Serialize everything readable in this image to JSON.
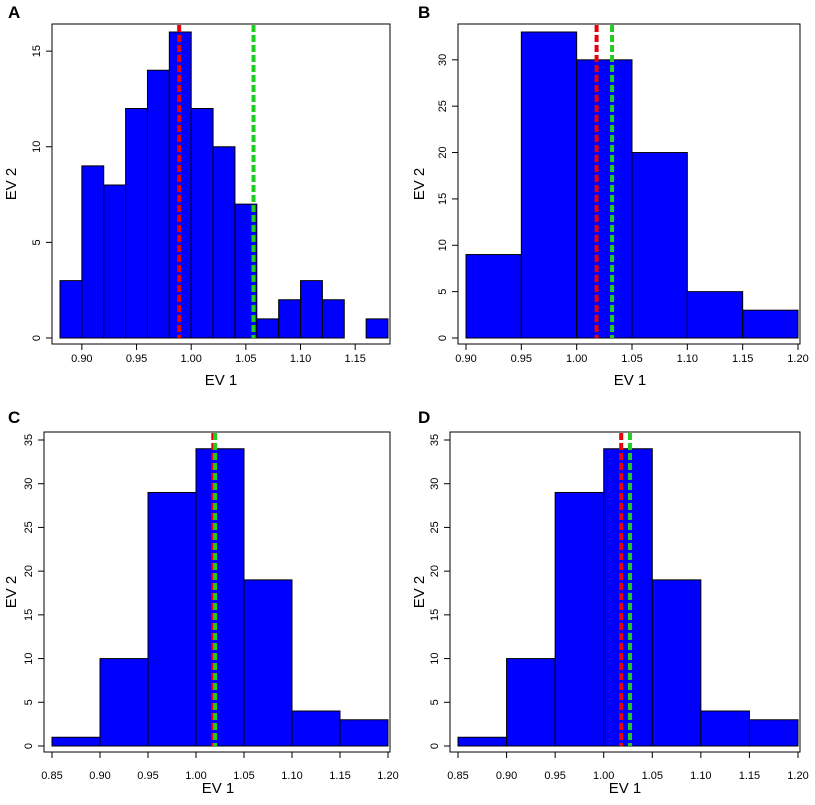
{
  "figure": {
    "colors": {
      "bar_fill": "#0000ff",
      "bar_stroke": "#000000",
      "red_line": "#e8000b",
      "green_line": "#22cc22",
      "axis": "#000000"
    }
  },
  "chart_data": [
    {
      "panel_label": "A",
      "type": "bar",
      "xlabel": "EV 1",
      "ylabel": "EV 2",
      "xlim": [
        0.88,
        1.18
      ],
      "ylim": [
        0,
        16
      ],
      "xticks": [
        "0.90",
        "0.95",
        "1.00",
        "1.05",
        "1.10",
        "1.15"
      ],
      "yticks": [
        "0",
        "5",
        "10",
        "15"
      ],
      "bins": [
        [
          0.88,
          0.9,
          3
        ],
        [
          0.9,
          0.92,
          9
        ],
        [
          0.92,
          0.94,
          8
        ],
        [
          0.94,
          0.96,
          12
        ],
        [
          0.96,
          0.98,
          14
        ],
        [
          0.98,
          1.0,
          16
        ],
        [
          1.0,
          1.02,
          12
        ],
        [
          1.02,
          1.04,
          10
        ],
        [
          1.04,
          1.06,
          7
        ],
        [
          1.06,
          1.08,
          1
        ],
        [
          1.08,
          1.1,
          2
        ],
        [
          1.1,
          1.12,
          3
        ],
        [
          1.12,
          1.14,
          2
        ],
        [
          1.14,
          1.16,
          0
        ],
        [
          1.16,
          1.18,
          1
        ]
      ],
      "red_line_x": 0.989,
      "green_line_x": 1.057
    },
    {
      "panel_label": "B",
      "type": "bar",
      "xlabel": "EV 1",
      "ylabel": "EV 2",
      "xlim": [
        0.9,
        1.2
      ],
      "ylim": [
        0,
        33
      ],
      "xticks": [
        "0.90",
        "0.95",
        "1.00",
        "1.05",
        "1.10",
        "1.15",
        "1.20"
      ],
      "yticks": [
        "0",
        "5",
        "10",
        "15",
        "20",
        "25",
        "30"
      ],
      "bins": [
        [
          0.9,
          0.95,
          9
        ],
        [
          0.95,
          1.0,
          33
        ],
        [
          1.0,
          1.05,
          30
        ],
        [
          1.05,
          1.1,
          20
        ],
        [
          1.1,
          1.15,
          5
        ],
        [
          1.15,
          1.2,
          3
        ]
      ],
      "red_line_x": 1.018,
      "green_line_x": 1.032
    },
    {
      "panel_label": "C",
      "type": "bar",
      "xlabel": "EV 1",
      "ylabel": "EV 2",
      "xlim": [
        0.85,
        1.2
      ],
      "ylim": [
        0,
        35
      ],
      "xticks": [
        "0.85",
        "0.90",
        "0.95",
        "1.00",
        "1.05",
        "1.10",
        "1.15",
        "1.20"
      ],
      "yticks": [
        "0",
        "5",
        "10",
        "15",
        "20",
        "25",
        "30",
        "35"
      ],
      "bins": [
        [
          0.85,
          0.9,
          1
        ],
        [
          0.9,
          0.95,
          10
        ],
        [
          0.95,
          1.0,
          29
        ],
        [
          1.0,
          1.05,
          34
        ],
        [
          1.05,
          1.1,
          19
        ],
        [
          1.1,
          1.15,
          4
        ],
        [
          1.15,
          1.2,
          3
        ]
      ],
      "red_line_x": 1.018,
      "green_line_x": 1.02
    },
    {
      "panel_label": "D",
      "type": "bar",
      "xlabel": "EV 1",
      "ylabel": "EV 2",
      "xlim": [
        0.85,
        1.2
      ],
      "ylim": [
        0,
        35
      ],
      "xticks": [
        "0.85",
        "0.90",
        "0.95",
        "1.00",
        "1.05",
        "1.10",
        "1.15",
        "1.20"
      ],
      "yticks": [
        "0",
        "5",
        "10",
        "15",
        "20",
        "25",
        "30",
        "35"
      ],
      "bins": [
        [
          0.85,
          0.9,
          1
        ],
        [
          0.9,
          0.95,
          10
        ],
        [
          0.95,
          1.0,
          29
        ],
        [
          1.0,
          1.05,
          34
        ],
        [
          1.05,
          1.1,
          19
        ],
        [
          1.1,
          1.15,
          4
        ],
        [
          1.15,
          1.2,
          3
        ]
      ],
      "red_line_x": 1.018,
      "green_line_x": 1.027
    }
  ]
}
